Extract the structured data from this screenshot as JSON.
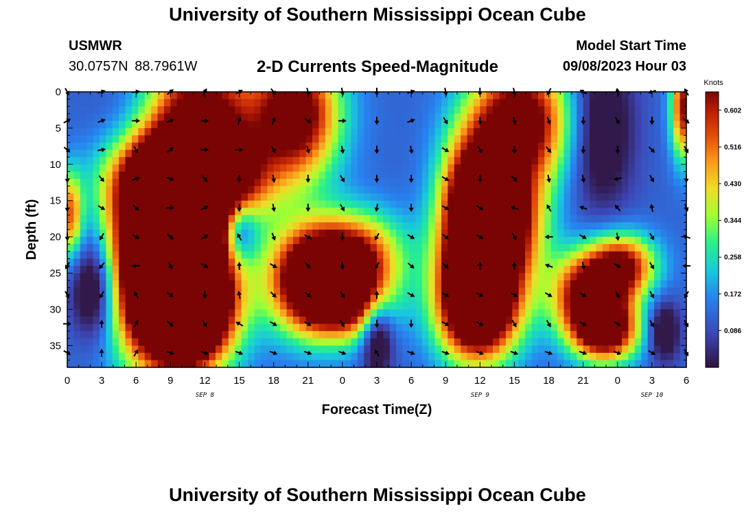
{
  "header": {
    "title": "University of Southern Mississippi Ocean Cube",
    "station_name": "USMWR",
    "station_coords": "30.0757N  88.7961W",
    "subtitle": "2-D Currents Speed-Magnitude",
    "model_start_label": "Model Start Time",
    "model_start_value": "09/08/2023 Hour 03"
  },
  "footer": {
    "title": "University of Southern Mississippi Ocean Cube"
  },
  "colors": {
    "background": "#ffffff",
    "text": "#000000",
    "arrow": "#000000"
  },
  "chart_data": {
    "type": "heatmap",
    "title": "2-D Currents Speed-Magnitude",
    "xlabel": "Forecast Time(Z)",
    "ylabel": "Depth (ft)",
    "x_range_hours": [
      0,
      54
    ],
    "y_range_ft": [
      0,
      38
    ],
    "x_tick_labels": [
      "0",
      "3",
      "6",
      "9",
      "12",
      "15",
      "18",
      "21",
      "0",
      "3",
      "6",
      "9",
      "12",
      "15",
      "18",
      "21",
      "0",
      "3",
      "6"
    ],
    "y_ticks": [
      0,
      5,
      10,
      15,
      20,
      25,
      30,
      35
    ],
    "date_labels": [
      {
        "label": "SEP 8",
        "hour": 12
      },
      {
        "label": "SEP 9",
        "hour": 36
      },
      {
        "label": "SEP 10",
        "hour": 51
      }
    ],
    "colorbar": {
      "title": "Knots",
      "min": 0,
      "max": 0.645,
      "ticks": [
        0.086,
        0.172,
        0.258,
        0.344,
        0.43,
        0.516,
        0.602
      ],
      "tick_labels": [
        "0.086",
        "0.172",
        "0.258",
        "0.344",
        "0.430",
        "0.516",
        "0.602"
      ]
    },
    "speed_blobs": [
      {
        "hour": 20,
        "depth": 3,
        "speed": 0.62,
        "sx": 2.6,
        "sy": 6
      },
      {
        "hour": 11.5,
        "depth": 4,
        "speed": 0.61,
        "sx": 3.5,
        "sy": 8
      },
      {
        "hour": 11,
        "depth": 12,
        "speed": 0.58,
        "sx": 4.5,
        "sy": 4
      },
      {
        "hour": 9.3,
        "depth": 24,
        "speed": 0.65,
        "sx": 3,
        "sy": 10
      },
      {
        "hour": 9,
        "depth": 16,
        "speed": 0.52,
        "sx": 3,
        "sy": 6
      },
      {
        "hour": 8.5,
        "depth": 26,
        "speed": 0.62,
        "sx": 3.5,
        "sy": 7
      },
      {
        "hour": 11,
        "depth": 30,
        "speed": 0.56,
        "sx": 2.5,
        "sy": 5
      },
      {
        "hour": 21,
        "depth": 26,
        "speed": 0.63,
        "sx": 2.5,
        "sy": 5
      },
      {
        "hour": 24.5,
        "depth": 28,
        "speed": 0.62,
        "sx": 2.5,
        "sy": 4
      },
      {
        "hour": 25,
        "depth": 22,
        "speed": 0.4,
        "sx": 3,
        "sy": 4
      },
      {
        "hour": 35.5,
        "depth": 24,
        "speed": 0.66,
        "sx": 2.2,
        "sy": 7
      },
      {
        "hour": 35.5,
        "depth": 14,
        "speed": 0.52,
        "sx": 2,
        "sy": 6
      },
      {
        "hour": 36,
        "depth": 30,
        "speed": 0.56,
        "sx": 2.5,
        "sy": 5
      },
      {
        "hour": 39.5,
        "depth": 4,
        "speed": 0.64,
        "sx": 3,
        "sy": 6
      },
      {
        "hour": 38.5,
        "depth": 18,
        "speed": 0.55,
        "sx": 2.2,
        "sy": 6
      },
      {
        "hour": 45.5,
        "depth": 28,
        "speed": 0.62,
        "sx": 2.2,
        "sy": 4
      },
      {
        "hour": 47,
        "depth": 33,
        "speed": 0.58,
        "sx": 2,
        "sy": 3
      },
      {
        "hour": 48.5,
        "depth": 24,
        "speed": 0.5,
        "sx": 2,
        "sy": 3
      },
      {
        "hour": 53.8,
        "depth": 2,
        "speed": 0.52,
        "sx": 0.8,
        "sy": 5
      },
      {
        "hour": 0.3,
        "depth": 17,
        "speed": 0.38,
        "sx": 0.7,
        "sy": 4
      },
      {
        "hour": 2.5,
        "depth": 27,
        "speed": -0.32,
        "sx": 1.5,
        "sy": 5
      },
      {
        "hour": 15,
        "depth": 19,
        "speed": -0.27,
        "sx": 1,
        "sy": 3
      },
      {
        "hour": 27,
        "depth": 33,
        "speed": -0.27,
        "sx": 1,
        "sy": 4
      },
      {
        "hour": 46.5,
        "depth": 5,
        "speed": -0.2,
        "sx": 2,
        "sy": 8
      },
      {
        "hour": 52,
        "depth": 33,
        "speed": -0.2,
        "sx": 1,
        "sy": 3
      },
      {
        "hour": 7,
        "depth": 3,
        "speed": -0.1,
        "sx": 3,
        "sy": 6
      }
    ],
    "speed_base": 0.12,
    "current_vectors": {
      "hours": [
        0,
        3,
        6,
        9,
        12,
        15,
        18,
        21,
        24,
        27,
        30,
        33,
        36,
        39,
        42,
        45,
        48,
        51,
        54
      ],
      "depths": [
        0,
        4,
        8,
        12,
        16,
        20,
        24,
        28,
        32,
        36
      ],
      "angles_deg": [
        [
          60,
          -20,
          -10,
          -40,
          -60,
          -30,
          50,
          75,
          80,
          90,
          -20,
          80,
          90,
          75,
          120,
          210,
          260,
          160,
          240
        ],
        [
          -30,
          -20,
          0,
          -20,
          0,
          -75,
          -70,
          35,
          0,
          90,
          -20,
          60,
          90,
          80,
          70,
          90,
          60,
          90,
          40
        ],
        [
          40,
          -10,
          60,
          -40,
          0,
          0,
          60,
          75,
          80,
          90,
          80,
          30,
          60,
          90,
          50,
          90,
          90,
          45,
          60
        ],
        [
          90,
          50,
          -20,
          20,
          50,
          90,
          80,
          90,
          60,
          90,
          90,
          30,
          90,
          45,
          80,
          80,
          170,
          60,
          90
        ],
        [
          90,
          30,
          45,
          0,
          -30,
          90,
          80,
          90,
          60,
          100,
          90,
          30,
          30,
          200,
          240,
          200,
          230,
          260,
          70
        ],
        [
          90,
          120,
          30,
          40,
          -30,
          -120,
          70,
          30,
          90,
          120,
          30,
          40,
          30,
          60,
          180,
          30,
          80,
          60,
          200
        ],
        [
          120,
          130,
          180,
          60,
          30,
          270,
          30,
          50,
          90,
          120,
          40,
          40,
          270,
          270,
          200,
          80,
          30,
          60,
          180
        ],
        [
          60,
          120,
          240,
          40,
          90,
          260,
          45,
          40,
          60,
          270,
          30,
          30,
          30,
          30,
          30,
          30,
          60,
          60,
          120
        ],
        [
          0,
          270,
          300,
          40,
          60,
          210,
          30,
          30,
          60,
          90,
          90,
          30,
          30,
          60,
          60,
          30,
          30,
          60,
          60
        ],
        [
          30,
          270,
          300,
          20,
          20,
          20,
          20,
          20,
          20,
          240,
          20,
          20,
          20,
          20,
          20,
          20,
          20,
          30,
          60
        ]
      ]
    }
  }
}
